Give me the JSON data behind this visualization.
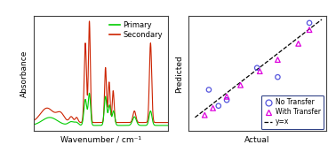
{
  "left_panel": {
    "primary_color": "#00cc00",
    "secondary_color": "#cc2200",
    "xlabel": "Wavenumber / cm⁻¹",
    "ylabel": "Absorbance",
    "legend_primary": "Primary",
    "legend_secondary": "Secondary"
  },
  "right_panel": {
    "no_transfer_actual": [
      0.15,
      0.22,
      0.28,
      0.5,
      0.65,
      0.88
    ],
    "no_transfer_predicted": [
      0.36,
      0.22,
      0.27,
      0.55,
      0.47,
      0.94
    ],
    "with_transfer_actual": [
      0.12,
      0.18,
      0.28,
      0.38,
      0.52,
      0.65,
      0.8,
      0.88
    ],
    "with_transfer_predicted": [
      0.14,
      0.2,
      0.3,
      0.4,
      0.52,
      0.62,
      0.76,
      0.88
    ],
    "no_transfer_color": "#5555dd",
    "with_transfer_color": "#dd00dd",
    "xlabel": "Actual",
    "ylabel": "Predicted",
    "legend_no_transfer": "No Transfer",
    "legend_with_transfer": "With Transfer",
    "legend_line": "y=x"
  },
  "fig_bg": "#ffffff"
}
